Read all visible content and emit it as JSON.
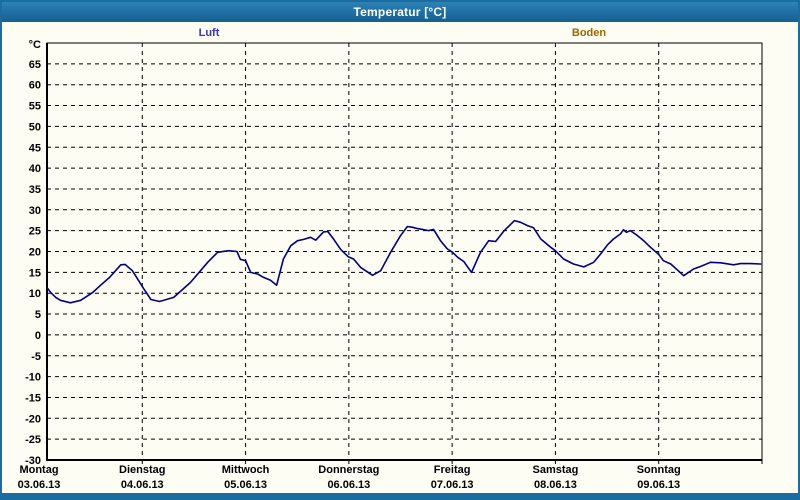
{
  "window": {
    "title": "Temperatur [°C]",
    "accent_color": "#1b6ca0"
  },
  "legend": [
    {
      "label": "Luft",
      "color": "#3333cc"
    },
    {
      "label": "Boden",
      "color": "#996600"
    }
  ],
  "chart_data": {
    "type": "line",
    "title": "Temperatur [°C]",
    "y_unit_label": "°C",
    "ylim": [
      -30,
      70
    ],
    "y_tick_step": 5,
    "y_ticks": [
      65,
      60,
      55,
      50,
      45,
      40,
      35,
      30,
      25,
      20,
      15,
      10,
      5,
      0,
      -5,
      -10,
      -15,
      -20,
      -25,
      -30
    ],
    "grid": "dashed",
    "legend_position": "top",
    "x_days": [
      {
        "name": "Montag",
        "date": "03.06.13"
      },
      {
        "name": "Dienstag",
        "date": "04.06.13"
      },
      {
        "name": "Mittwoch",
        "date": "05.06.13"
      },
      {
        "name": "Donnerstag",
        "date": "06.06.13"
      },
      {
        "name": "Freitag",
        "date": "07.06.13"
      },
      {
        "name": "Samstag",
        "date": "08.06.13"
      },
      {
        "name": "Sonntag",
        "date": "09.06.13"
      }
    ],
    "x_range_days": 7,
    "series": [
      {
        "name": "Luft",
        "color": "#000080",
        "points_unit": [
          "hours_from_monday_00",
          "deg_C"
        ],
        "points": [
          [
            1.5,
            11.8
          ],
          [
            2.7,
            10.2
          ],
          [
            3.9,
            9.0
          ],
          [
            5,
            8.3
          ],
          [
            7.3,
            7.7
          ],
          [
            9.7,
            8.3
          ],
          [
            12.5,
            10.2
          ],
          [
            14.3,
            11.9
          ],
          [
            16.4,
            13.8
          ],
          [
            19,
            16.8
          ],
          [
            20,
            16.9
          ],
          [
            21.7,
            15.4
          ],
          [
            24.3,
            11.1
          ],
          [
            26,
            8.5
          ],
          [
            28,
            8.0
          ],
          [
            31.3,
            9.0
          ],
          [
            35.2,
            12.6
          ],
          [
            39.2,
            17.4
          ],
          [
            41.5,
            19.8
          ],
          [
            44,
            20.2
          ],
          [
            46,
            20.0
          ],
          [
            46.8,
            18.1
          ],
          [
            48,
            17.8
          ],
          [
            49.2,
            15.0
          ],
          [
            50.8,
            14.6
          ],
          [
            52.2,
            13.8
          ],
          [
            53.8,
            13.1
          ],
          [
            55.2,
            11.9
          ],
          [
            56.8,
            18.2
          ],
          [
            58.5,
            21.4
          ],
          [
            60.1,
            22.6
          ],
          [
            61.5,
            22.9
          ],
          [
            63.1,
            23.4
          ],
          [
            64.3,
            22.7
          ],
          [
            66.1,
            24.7
          ],
          [
            67.1,
            24.8
          ],
          [
            68.5,
            22.9
          ],
          [
            70.1,
            20.5
          ],
          [
            71.9,
            18.7
          ],
          [
            73.1,
            18.2
          ],
          [
            74.7,
            16.2
          ],
          [
            77.5,
            14.3
          ],
          [
            79.4,
            15.4
          ],
          [
            81.7,
            19.8
          ],
          [
            84,
            23.8
          ],
          [
            85.6,
            26.0
          ],
          [
            86.8,
            25.8
          ],
          [
            88,
            25.5
          ],
          [
            89.1,
            25.3
          ],
          [
            90.5,
            25.0
          ],
          [
            91.7,
            25.3
          ],
          [
            93.3,
            22.6
          ],
          [
            94.9,
            20.6
          ],
          [
            96.1,
            19.8
          ],
          [
            97.3,
            18.6
          ],
          [
            98.7,
            17.6
          ],
          [
            100.5,
            15.0
          ],
          [
            102.6,
            19.8
          ],
          [
            104.5,
            22.6
          ],
          [
            106.1,
            22.4
          ],
          [
            108,
            24.9
          ],
          [
            110.5,
            27.4
          ],
          [
            111.9,
            27.0
          ],
          [
            113.5,
            26.2
          ],
          [
            114.9,
            25.7
          ],
          [
            116.6,
            23.0
          ],
          [
            118.9,
            21.0
          ],
          [
            120,
            20.2
          ],
          [
            121.9,
            18.2
          ],
          [
            124.2,
            17.0
          ],
          [
            126.6,
            16.3
          ],
          [
            128.9,
            17.4
          ],
          [
            130.5,
            19.4
          ],
          [
            132.1,
            21.6
          ],
          [
            133.5,
            23.0
          ],
          [
            135.1,
            24.2
          ],
          [
            135.8,
            25.2
          ],
          [
            136.5,
            24.6
          ],
          [
            137.4,
            25.0
          ],
          [
            139.1,
            23.8
          ],
          [
            140.5,
            22.6
          ],
          [
            142.1,
            21.0
          ],
          [
            144,
            19.3
          ],
          [
            145.1,
            17.8
          ],
          [
            146.8,
            17.0
          ],
          [
            149.8,
            14.2
          ],
          [
            152.1,
            15.8
          ],
          [
            153.7,
            16.4
          ],
          [
            156,
            17.4
          ],
          [
            158.4,
            17.3
          ],
          [
            161.4,
            16.8
          ],
          [
            163,
            17.1
          ],
          [
            165.3,
            17.1
          ],
          [
            167.7,
            17.0
          ]
        ]
      }
    ]
  }
}
